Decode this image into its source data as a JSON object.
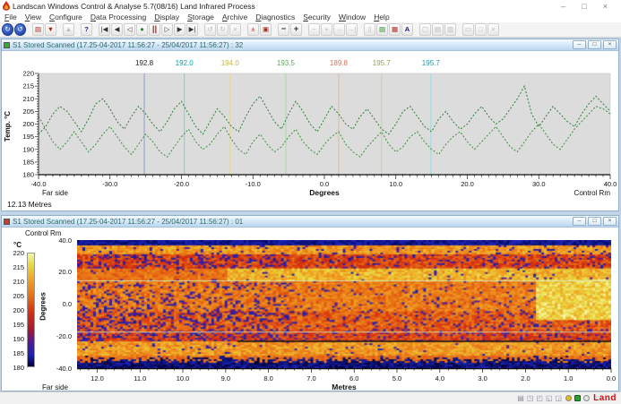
{
  "window": {
    "title": "Landscan Windows Control & Analyse 5.7(08/16) Land Infrared Process",
    "controls": {
      "minimize": "–",
      "maximize": "□",
      "close": "×"
    }
  },
  "menu": {
    "items": [
      "File",
      "View",
      "Configure",
      "Data Processing",
      "Display",
      "Storage",
      "Archive",
      "Diagnostics",
      "Security",
      "Window",
      "Help"
    ]
  },
  "toolbar": {
    "buttons": [
      {
        "name": "scan-info-1",
        "glyph": "↻",
        "cls": "roundblue"
      },
      {
        "name": "scan-info-2",
        "glyph": "↺",
        "cls": "roundblue"
      },
      {
        "separator": true
      },
      {
        "name": "report-page",
        "glyph": "▤",
        "cls": "red"
      },
      {
        "name": "report-save",
        "glyph": "▼",
        "cls": "red"
      },
      {
        "separator": true
      },
      {
        "name": "profile-peaks",
        "glyph": "▲",
        "cls": "dis"
      },
      {
        "separator": true
      },
      {
        "name": "help",
        "glyph": "?",
        "cls": "blue"
      },
      {
        "separator": true
      },
      {
        "name": "rewind-start",
        "glyph": "|◀",
        "cls": ""
      },
      {
        "name": "step-back",
        "glyph": "◀",
        "cls": ""
      },
      {
        "name": "play-reverse",
        "glyph": "◁",
        "cls": ""
      },
      {
        "name": "record",
        "glyph": "●",
        "cls": "green"
      },
      {
        "name": "pause",
        "glyph": "||",
        "cls": "red bold"
      },
      {
        "name": "play",
        "glyph": "▷",
        "cls": ""
      },
      {
        "name": "step-forward",
        "glyph": "▶",
        "cls": ""
      },
      {
        "name": "forward-end",
        "glyph": "▶|",
        "cls": ""
      },
      {
        "separator": true
      },
      {
        "name": "undo",
        "glyph": "↺",
        "cls": "dis"
      },
      {
        "name": "redo",
        "glyph": "↻",
        "cls": "dis"
      },
      {
        "name": "clear",
        "glyph": "×",
        "cls": "dis"
      },
      {
        "separator": true
      },
      {
        "name": "scale-plusminus",
        "glyph": "±",
        "cls": "red"
      },
      {
        "name": "overlay-grid",
        "glyph": "▣",
        "cls": "red"
      },
      {
        "separator": true
      },
      {
        "name": "zoom-out",
        "glyph": "−",
        "cls": "bold"
      },
      {
        "name": "zoom-in",
        "glyph": "+",
        "cls": "bold"
      },
      {
        "separator": true
      },
      {
        "name": "pan-minus",
        "glyph": "−",
        "cls": "dis"
      },
      {
        "name": "pan-plus",
        "glyph": "+",
        "cls": "dis"
      },
      {
        "name": "pan-right",
        "glyph": "→",
        "cls": "dis"
      },
      {
        "name": "pan-end",
        "glyph": "→|",
        "cls": "dis"
      },
      {
        "separator": true
      },
      {
        "name": "copy-page",
        "glyph": "▯",
        "cls": "dis"
      },
      {
        "name": "print",
        "glyph": "▤",
        "cls": "green"
      },
      {
        "name": "grid-view",
        "glyph": "▦",
        "cls": "red"
      },
      {
        "name": "annotate",
        "glyph": "A",
        "cls": "blue"
      },
      {
        "separator": true
      },
      {
        "name": "arrange-1",
        "glyph": "▢",
        "cls": "dis"
      },
      {
        "name": "arrange-2",
        "glyph": "▤",
        "cls": "dis"
      },
      {
        "name": "arrange-3",
        "glyph": "▥",
        "cls": "dis"
      },
      {
        "separator": true
      },
      {
        "name": "win-min",
        "glyph": "▭",
        "cls": "dis"
      },
      {
        "name": "win-restore",
        "glyph": "□",
        "cls": "dis"
      },
      {
        "name": "win-close",
        "glyph": "×",
        "cls": "dis"
      }
    ]
  },
  "mdi_windows": {
    "top": {
      "title": "S1 Stored Scanned (17.25-04-2017 11:56:27 - 25/04/2017 11:56:27) : 32",
      "icon_color": "#2fae2f",
      "controls": {
        "minimize": "–",
        "restore": "□",
        "close": "×"
      }
    },
    "bottom": {
      "title": "S1 Stored Scanned (17.25-04-2017 11:56:27 - 25/04/2017 11:56:27) : 01",
      "icon_color": "#d03a2a",
      "controls": {
        "minimize": "–",
        "restore": "□",
        "close": "×"
      }
    }
  },
  "chart_data": [
    {
      "type": "line",
      "title": "",
      "xlabel": "Degrees",
      "ylabel": "Temp. °C",
      "xlim": [
        -40,
        40
      ],
      "ylim": [
        180,
        220
      ],
      "xticks": [
        -40,
        -30,
        -20,
        -10,
        0,
        10,
        20,
        30,
        40
      ],
      "yticks": [
        220,
        215,
        210,
        205,
        200,
        195,
        190,
        185,
        180
      ],
      "left_label": "Far side",
      "right_label": "Control Rm",
      "bottom_left_label": "12.13  Metres",
      "grid": false,
      "plot_bg": "#dcdcdc",
      "cursors": [
        {
          "x": -25.2,
          "value": "192.8",
          "color": "#90a0cc",
          "label_color": "#222222"
        },
        {
          "x": -19.6,
          "value": "192.0",
          "color": "#7ed0d0",
          "label_color": "#00a8a8"
        },
        {
          "x": -13.2,
          "value": "194.0",
          "color": "#e4d694",
          "label_color": "#c8b440"
        },
        {
          "x": -5.4,
          "value": "193.5",
          "color": "#a8d8a8",
          "label_color": "#58aa58"
        },
        {
          "x": 2.0,
          "value": "189.8",
          "color": "#e0b89c",
          "label_color": "#cc7858"
        },
        {
          "x": 8.0,
          "value": "195.7",
          "color": "#ccd098",
          "label_color": "#8aa84e"
        },
        {
          "x": 14.9,
          "value": "195.7",
          "color": "#9cd8dc",
          "label_color": "#2098a0"
        }
      ],
      "series": [
        {
          "name": "upper-scan",
          "color": "#2e7d36",
          "dash": true,
          "x_start": -40,
          "x_step": 1,
          "values": [
            196,
            199,
            204,
            207,
            205,
            201,
            197,
            202,
            208,
            210,
            206,
            201,
            198,
            203,
            207,
            204,
            200,
            197,
            201,
            206,
            209,
            204,
            199,
            196,
            201,
            206,
            203,
            199,
            197,
            203,
            208,
            211,
            206,
            201,
            198,
            204,
            209,
            205,
            200,
            197,
            202,
            207,
            204,
            200,
            198,
            203,
            206,
            202,
            198,
            196,
            200,
            205,
            207,
            203,
            199,
            197,
            202,
            205,
            201,
            198,
            200,
            204,
            207,
            203,
            200,
            202,
            206,
            210,
            215,
            204,
            199,
            203,
            207,
            204,
            201,
            199,
            204,
            208,
            211,
            208,
            205
          ]
        },
        {
          "name": "lower-scan",
          "color": "#3b8f3b",
          "dash": true,
          "x_start": -40,
          "x_step": 1,
          "values": [
            203,
            198,
            193,
            190,
            193,
            197,
            193,
            189,
            192,
            196,
            199,
            195,
            191,
            188,
            192,
            196,
            193,
            189,
            187,
            191,
            195,
            198,
            193,
            190,
            192,
            196,
            199,
            194,
            190,
            188,
            193,
            196,
            192,
            189,
            191,
            195,
            198,
            193,
            190,
            188,
            192,
            195,
            197,
            192,
            189,
            187,
            191,
            194,
            197,
            192,
            189,
            191,
            195,
            197,
            193,
            190,
            188,
            192,
            195,
            197,
            193,
            190,
            193,
            196,
            199,
            195,
            191,
            189,
            193,
            197,
            200,
            196,
            192,
            190,
            194,
            198,
            201,
            204,
            207,
            206,
            204
          ]
        }
      ]
    },
    {
      "type": "heatmap",
      "corner_label": "Control Rm",
      "colorbar": {
        "unit": "°C",
        "ticks": [
          220,
          215,
          210,
          205,
          200,
          195,
          190,
          185,
          180
        ]
      },
      "ylabel": "Degrees",
      "yticks": [
        40,
        20,
        0,
        -20,
        -40
      ],
      "xticks": [
        12,
        11,
        10,
        9,
        8,
        7,
        6,
        5,
        4,
        3,
        2,
        1,
        0
      ],
      "xlabel": "Metres",
      "left_label": "Far side",
      "xlim": [
        12.47,
        0
      ],
      "ylim": [
        -40,
        40
      ],
      "value_range": [
        180,
        220
      ],
      "seed": 7,
      "palette": [
        [
          180,
          "#000038"
        ],
        [
          184,
          "#1822b4"
        ],
        [
          189,
          "#5a1890"
        ],
        [
          193,
          "#a81830"
        ],
        [
          199,
          "#d42c10"
        ],
        [
          205,
          "#e86e14"
        ],
        [
          211,
          "#f0a424"
        ],
        [
          216,
          "#e8d83c"
        ],
        [
          220,
          "#f6f6a6"
        ]
      ],
      "bands": [
        {
          "v": [
            0,
            0.035
          ],
          "base": 181,
          "spread": 4,
          "cold_p": 0
        },
        {
          "v": [
            0.035,
            0.1
          ],
          "base": 205,
          "spread": 9,
          "cold_p": 0.08
        },
        {
          "v": [
            0.1,
            0.225
          ],
          "base": 197,
          "spread": 9,
          "cold_p": 0.15,
          "cold_p_left": 0.28
        },
        {
          "v": [
            0.225,
            0.31
          ],
          "base": 208,
          "spread": 9,
          "cold_p": 0.05,
          "hot_u_min": 0.28,
          "alt_base": 202
        },
        {
          "v": [
            0.31,
            0.56
          ],
          "base": 202,
          "spread": 9,
          "cold_p": 0.06,
          "cold_p_left": 0.2
        },
        {
          "v": [
            0.56,
            0.71
          ],
          "base": 199,
          "spread": 9,
          "cold_p": 0.12,
          "cold_p_left": 0.3
        },
        {
          "v": [
            0.71,
            0.79
          ],
          "base": 197,
          "spread": 8,
          "cold_p": 0.15,
          "cold_p_left": 0.32
        },
        {
          "v": [
            0.79,
            0.91
          ],
          "base": 205,
          "spread": 9,
          "cold_p": 0.04
        },
        {
          "v": [
            0.91,
            1.01
          ],
          "base": 202,
          "spread": 6,
          "cold_p": 0,
          "note": "dark-jagged-bottom"
        }
      ],
      "hot_patch_right": {
        "u": [
          0.86,
          1.0
        ],
        "v": [
          0.3,
          0.62
        ],
        "base": 211,
        "spread": 9
      },
      "black_line_v": 0.785,
      "light_lines_v": [
        0.315,
        0.715
      ]
    }
  ],
  "statusbar": {
    "icons": [
      {
        "name": "status-doc-icon",
        "glyph": "▤"
      },
      {
        "name": "status-frame-icon",
        "glyph": "◳"
      },
      {
        "name": "status-tile-icon",
        "glyph": "◰"
      },
      {
        "name": "status-cascade-icon",
        "glyph": "◱"
      },
      {
        "name": "status-grid-icon",
        "glyph": "◲"
      }
    ],
    "indicators": [
      {
        "name": "indicator-amber",
        "color": "#e8b820",
        "shape": "circle"
      },
      {
        "name": "indicator-green",
        "color": "#2f9e2f",
        "shape": "square"
      },
      {
        "name": "indicator-idle",
        "color": "#e4e4e4",
        "shape": "circle"
      }
    ],
    "brand": "Land",
    "brand_color": "#cc1111"
  }
}
